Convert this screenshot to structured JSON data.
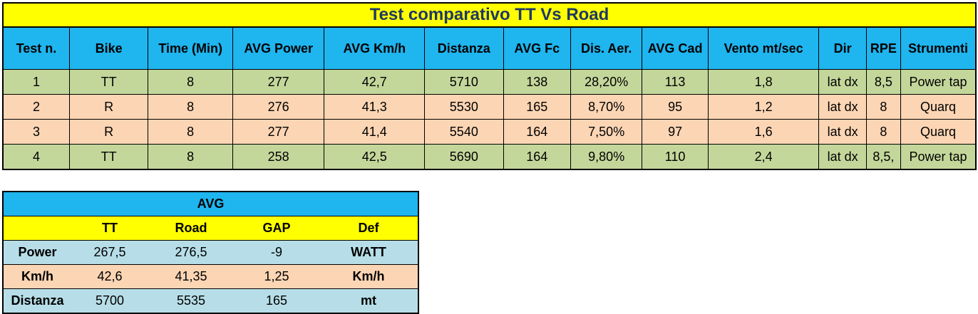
{
  "main": {
    "title": "Test comparativo TT Vs Road",
    "headers": [
      "Test n.",
      "Bike",
      "Time (Min)",
      "AVG Power",
      "AVG Km/h",
      "Distanza",
      "AVG Fc",
      "Dis. Aer.",
      "AVG Cad",
      "Vento mt/sec",
      "Dir",
      "RPE",
      "Strumenti"
    ],
    "rows": [
      [
        "1",
        "TT",
        "8",
        "277",
        "42,7",
        "5710",
        "138",
        "28,20%",
        "113",
        "1,8",
        "lat dx",
        "8,5",
        "Power tap"
      ],
      [
        "2",
        "R",
        "8",
        "276",
        "41,3",
        "5530",
        "165",
        "8,70%",
        "95",
        "1,2",
        "lat dx",
        "8",
        "Quarq"
      ],
      [
        "3",
        "R",
        "8",
        "277",
        "41,4",
        "5540",
        "164",
        "7,50%",
        "97",
        "1,6",
        "lat dx",
        "8",
        "Quarq"
      ],
      [
        "4",
        "TT",
        "8",
        "258",
        "42,5",
        "5690",
        "164",
        "9,80%",
        "110",
        "2,4",
        "lat dx",
        "8,5,",
        "Power tap"
      ]
    ],
    "row_colors": {
      "tt": "#c4d79b",
      "road": "#fcd5b4",
      "header": "#1fb5ef",
      "title_bg": "#ffff00",
      "title_fg": "#1f3864"
    }
  },
  "avg": {
    "title": "AVG",
    "headers": [
      "",
      "TT",
      "Road",
      "GAP",
      "Def"
    ],
    "rows": [
      [
        "Power",
        "267,5",
        "276,5",
        "-9",
        "WATT"
      ],
      [
        "Km/h",
        "42,6",
        "41,35",
        "1,25",
        "Km/h"
      ],
      [
        "Distanza",
        "5700",
        "5535",
        "165",
        "mt"
      ]
    ],
    "row_colors": {
      "blue": "#b7dee8",
      "orange": "#fcd5b4"
    }
  }
}
